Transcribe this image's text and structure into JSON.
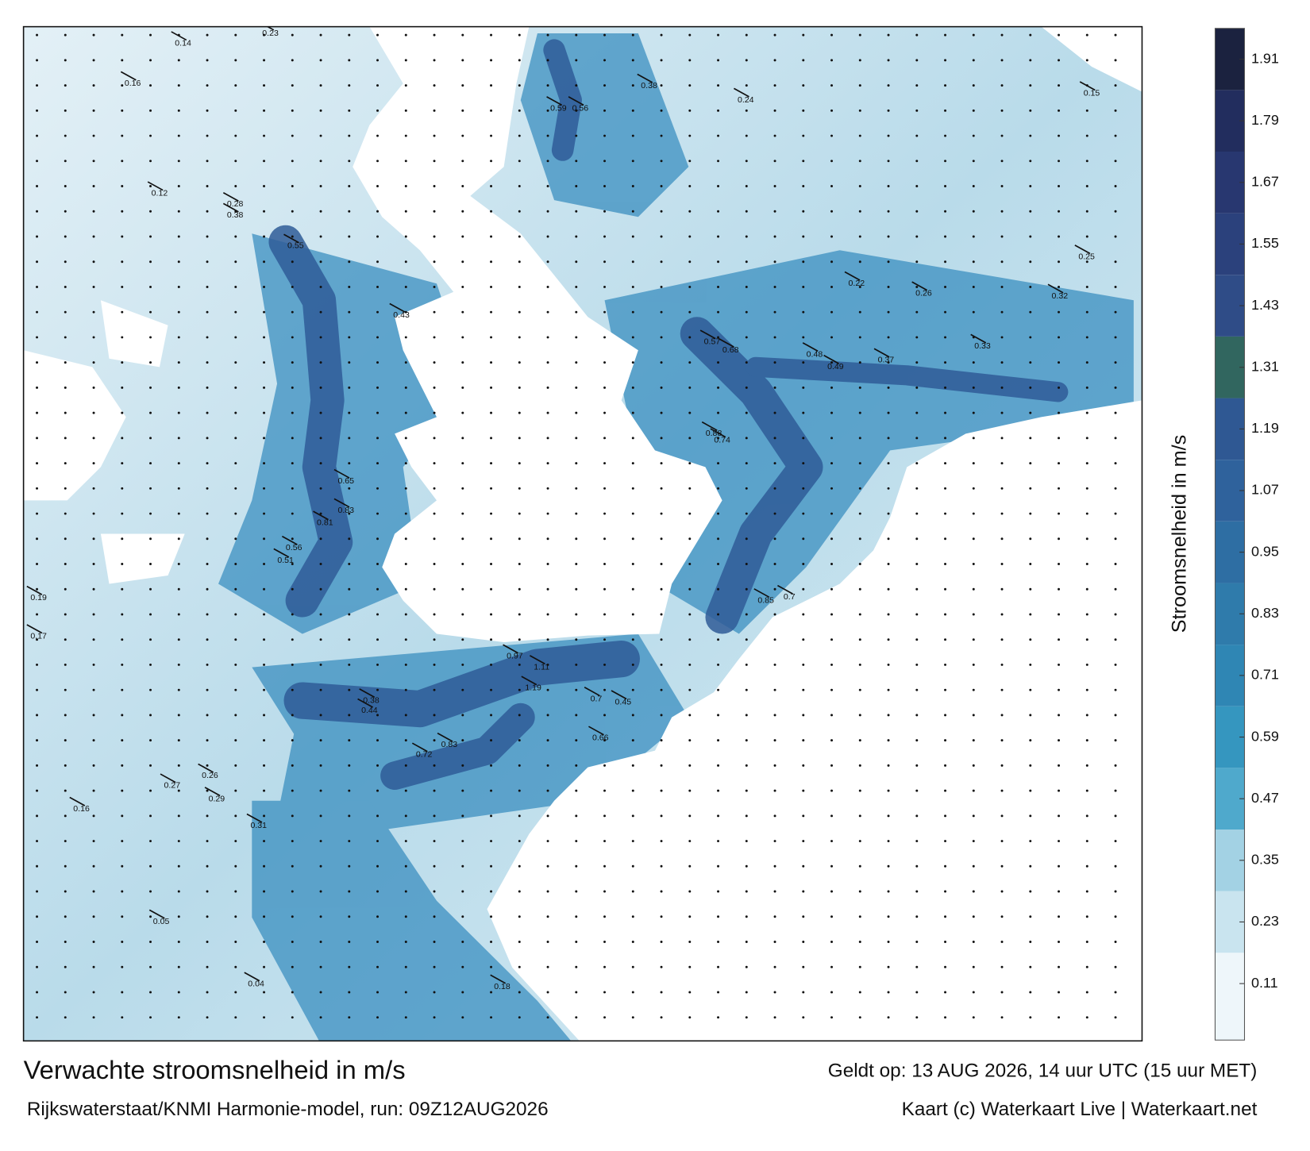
{
  "title": "Verwachte stroomsnelheid in m/s",
  "valid_time": "Geldt op: 13 AUG 2026, 14 uur UTC (15 uur MET)",
  "source": "Rijkswaterstaat/KNMI Harmonie-model, run: 09Z12AUG2026",
  "credit": "Kaart (c) Waterkaart Live | Waterkaart.net",
  "colorbar": {
    "label": "Stroomsnelheid in m/s",
    "lim": [
      0,
      1.97
    ],
    "ticks": [
      0.11,
      0.23,
      0.35,
      0.47,
      0.59,
      0.71,
      0.83,
      0.95,
      1.07,
      1.19,
      1.31,
      1.43,
      1.55,
      1.67,
      1.79,
      1.91
    ],
    "colors": [
      "#eef6fa",
      "#c9e4ef",
      "#a3d2e4",
      "#4fa9cc",
      "#3596bf",
      "#2f86b4",
      "#2f7bab",
      "#2e6ea3",
      "#2f629c",
      "#2f5893",
      "#31665f",
      "#2f4c87",
      "#2b417c",
      "#283770",
      "#222d5e",
      "#1b223f"
    ],
    "top_color": "#9a9a9a"
  },
  "speed_labels": [
    0.14,
    0.23,
    0.16,
    0.12,
    0.28,
    0.55,
    0.38,
    0.43,
    0.68,
    0.57,
    0.88,
    0.74,
    0.48,
    0.49,
    0.37,
    0.33,
    0.26,
    0.22,
    0.81,
    0.83,
    0.65,
    0.51,
    0.56,
    1.11,
    1.19,
    0.97,
    0.7,
    0.66,
    0.45,
    0.72,
    0.83,
    0.44,
    0.38,
    0.31,
    0.27,
    0.26,
    0.29,
    0.16,
    0.19,
    0.17,
    0.04,
    0.05,
    0.18,
    0.85,
    0.7,
    0.24,
    0.38,
    0.56,
    0.59,
    0.15,
    0.25,
    0.32
  ]
}
